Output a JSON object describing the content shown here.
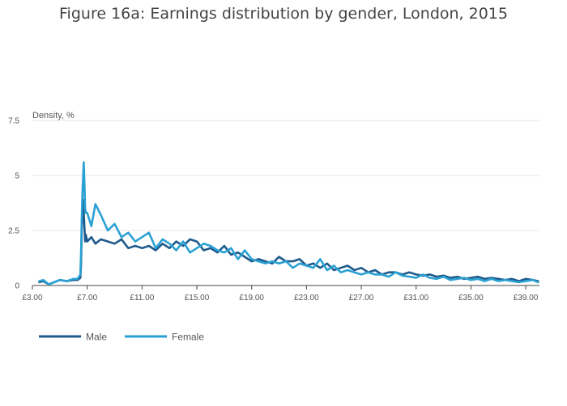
{
  "chart_data": {
    "type": "line",
    "title": "Figure 16a: Earnings distribution by gender, London, 2015",
    "ylabel": "Density, %",
    "xlabel": "",
    "xlim": [
      3.0,
      40.0
    ],
    "ylim": [
      0,
      7.5
    ],
    "x_ticks": [
      3,
      7,
      11,
      15,
      19,
      23,
      27,
      31,
      35,
      39
    ],
    "x_tick_labels": [
      "£3.00",
      "£7.00",
      "£11.00",
      "£15.00",
      "£19.00",
      "£23.00",
      "£27.00",
      "£31.00",
      "£35.00",
      "£39.00"
    ],
    "y_ticks": [
      0,
      2.5,
      5,
      7.5
    ],
    "y_tick_labels": [
      "0",
      "2.5",
      "5",
      "7.5"
    ],
    "grid": true,
    "legend_position": "bottom-left",
    "series": [
      {
        "name": "Male",
        "color": "#1f5a8c",
        "x": [
          3.5,
          3.8,
          4.2,
          5.0,
          5.5,
          6.0,
          6.3,
          6.5,
          6.55,
          6.6,
          6.65,
          6.7,
          6.75,
          6.8,
          6.85,
          6.9,
          7.0,
          7.3,
          7.6,
          8.0,
          8.5,
          9.0,
          9.5,
          10.0,
          10.5,
          11.0,
          11.5,
          12.0,
          12.5,
          13.0,
          13.5,
          14.0,
          14.5,
          15.0,
          15.5,
          16.0,
          16.5,
          17.0,
          17.5,
          18.0,
          18.5,
          19.0,
          19.5,
          20.0,
          20.5,
          21.0,
          21.5,
          22.0,
          22.5,
          23.0,
          23.5,
          24.0,
          24.5,
          25.0,
          25.5,
          26.0,
          26.5,
          27.0,
          27.5,
          28.0,
          28.5,
          29.0,
          29.5,
          30.0,
          30.5,
          31.0,
          31.5,
          32.0,
          32.5,
          33.0,
          33.5,
          34.0,
          34.5,
          35.0,
          35.5,
          36.0,
          36.5,
          37.0,
          37.5,
          38.0,
          38.5,
          39.0,
          39.5,
          39.9
        ],
        "values": [
          0.15,
          0.2,
          0.05,
          0.25,
          0.2,
          0.25,
          0.25,
          0.35,
          1.0,
          2.5,
          3.2,
          3.9,
          3.3,
          2.6,
          2.0,
          2.3,
          2.0,
          2.2,
          1.9,
          2.1,
          2.0,
          1.9,
          2.1,
          1.7,
          1.8,
          1.7,
          1.8,
          1.6,
          1.9,
          1.7,
          2.0,
          1.8,
          2.1,
          2.0,
          1.6,
          1.7,
          1.5,
          1.8,
          1.4,
          1.5,
          1.3,
          1.1,
          1.2,
          1.1,
          1.0,
          1.3,
          1.1,
          1.1,
          1.2,
          0.9,
          1.0,
          0.8,
          1.0,
          0.7,
          0.8,
          0.9,
          0.7,
          0.8,
          0.6,
          0.7,
          0.5,
          0.6,
          0.6,
          0.5,
          0.6,
          0.5,
          0.45,
          0.5,
          0.4,
          0.45,
          0.35,
          0.4,
          0.3,
          0.35,
          0.4,
          0.3,
          0.35,
          0.3,
          0.25,
          0.3,
          0.2,
          0.3,
          0.25,
          0.2
        ]
      },
      {
        "name": "Female",
        "color": "#2aa1d3",
        "x": [
          3.5,
          3.8,
          4.2,
          5.0,
          5.5,
          6.0,
          6.3,
          6.5,
          6.55,
          6.6,
          6.65,
          6.7,
          6.75,
          6.8,
          6.85,
          6.9,
          7.0,
          7.3,
          7.6,
          8.0,
          8.5,
          9.0,
          9.5,
          10.0,
          10.5,
          11.0,
          11.5,
          12.0,
          12.5,
          13.0,
          13.5,
          14.0,
          14.5,
          15.0,
          15.5,
          16.0,
          16.5,
          17.0,
          17.5,
          18.0,
          18.5,
          19.0,
          19.5,
          20.0,
          20.5,
          21.0,
          21.5,
          22.0,
          22.5,
          23.0,
          23.5,
          24.0,
          24.5,
          25.0,
          25.5,
          26.0,
          26.5,
          27.0,
          27.5,
          28.0,
          28.5,
          29.0,
          29.5,
          30.0,
          30.5,
          31.0,
          31.5,
          32.0,
          32.5,
          33.0,
          33.5,
          34.0,
          34.5,
          35.0,
          35.5,
          36.0,
          36.5,
          37.0,
          37.5,
          38.0,
          38.5,
          39.0,
          39.5,
          39.9
        ],
        "values": [
          0.2,
          0.25,
          0.05,
          0.25,
          0.2,
          0.3,
          0.3,
          0.5,
          1.5,
          3.0,
          4.2,
          4.9,
          5.6,
          4.6,
          3.5,
          3.3,
          3.3,
          2.7,
          3.7,
          3.2,
          2.5,
          2.8,
          2.2,
          2.4,
          2.0,
          2.2,
          2.4,
          1.7,
          2.1,
          1.9,
          1.6,
          2.0,
          1.5,
          1.7,
          1.9,
          1.8,
          1.6,
          1.5,
          1.7,
          1.2,
          1.6,
          1.2,
          1.1,
          1.0,
          1.1,
          1.0,
          1.1,
          0.8,
          1.0,
          0.9,
          0.8,
          1.2,
          0.7,
          0.9,
          0.6,
          0.7,
          0.6,
          0.5,
          0.6,
          0.5,
          0.5,
          0.4,
          0.6,
          0.45,
          0.4,
          0.35,
          0.5,
          0.35,
          0.3,
          0.4,
          0.25,
          0.3,
          0.35,
          0.25,
          0.3,
          0.2,
          0.3,
          0.2,
          0.25,
          0.2,
          0.15,
          0.2,
          0.25,
          0.15
        ]
      }
    ]
  }
}
